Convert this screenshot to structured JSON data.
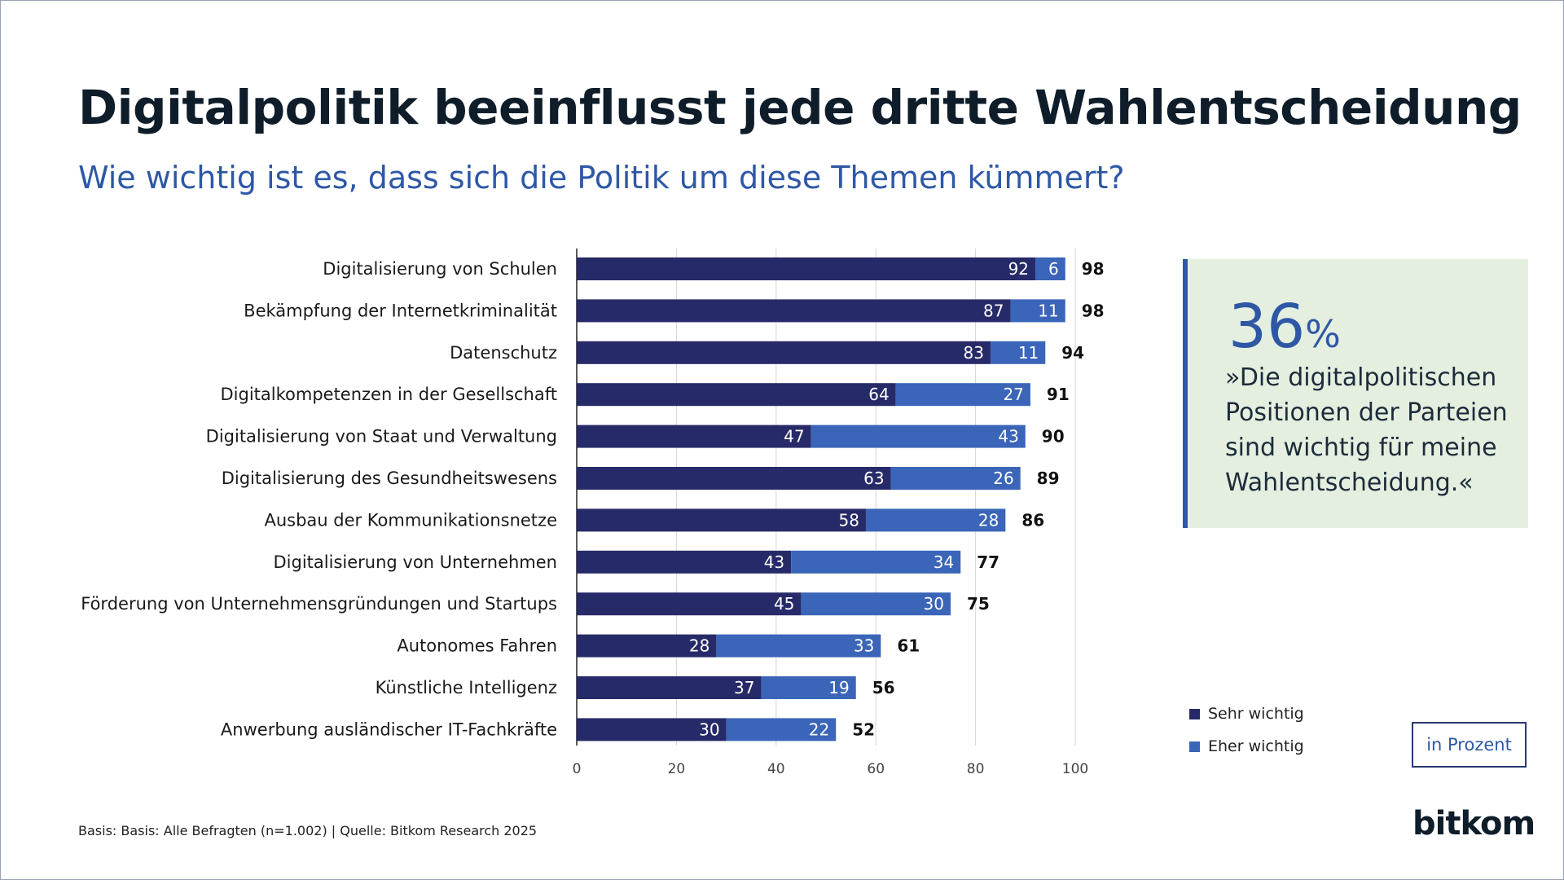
{
  "header": {
    "title": "Digitalpolitik beeinflusst jede dritte Wahlentscheidung",
    "subtitle": "Wie wichtig ist es, dass sich die Politik um diese Themen kümmert?"
  },
  "chart_data": {
    "type": "bar",
    "orientation": "horizontal",
    "stacked": true,
    "categories": [
      "Digitalisierung von Schulen",
      "Bekämpfung der Internetkriminalität",
      "Datenschutz",
      "Digitalkompetenzen in der Gesellschaft",
      "Digitalisierung von Staat und Verwaltung",
      "Digitalisierung des Gesundheitswesens",
      "Ausbau der Kommunikationsnetze",
      "Digitalisierung von Unternehmen",
      "Förderung von Unternehmensgründungen und Startups",
      "Autonomes Fahren",
      "Künstliche Intelligenz",
      "Anwerbung ausländischer IT-Fachkräfte"
    ],
    "series": [
      {
        "name": "Sehr wichtig",
        "color": "#272a68",
        "values": [
          92,
          87,
          83,
          64,
          47,
          63,
          58,
          43,
          45,
          28,
          37,
          30
        ]
      },
      {
        "name": "Eher wichtig",
        "color": "#3a65b8",
        "values": [
          6,
          11,
          11,
          27,
          43,
          26,
          28,
          34,
          30,
          33,
          19,
          22
        ]
      }
    ],
    "totals": [
      98,
      98,
      94,
      91,
      90,
      89,
      86,
      77,
      75,
      61,
      56,
      52
    ],
    "xlim": [
      0,
      100
    ],
    "xticks": [
      0,
      20,
      40,
      60,
      80,
      100
    ],
    "grid": true,
    "unit_label": "in Prozent"
  },
  "callout": {
    "number": "36",
    "percent_sign": "%",
    "quote": "»Die digitalpolitischen Positionen der Parteien sind wichtig für meine Wahlentscheidung.«"
  },
  "legend": {
    "items": [
      {
        "label": "Sehr wichtig",
        "color": "#272a68"
      },
      {
        "label": "Eher wichtig",
        "color": "#3a65b8"
      }
    ]
  },
  "footer": {
    "source": "Basis: Basis: Alle Befragten (n=1.002) | Quelle: Bitkom Research 2025",
    "logo": "bitkom"
  }
}
